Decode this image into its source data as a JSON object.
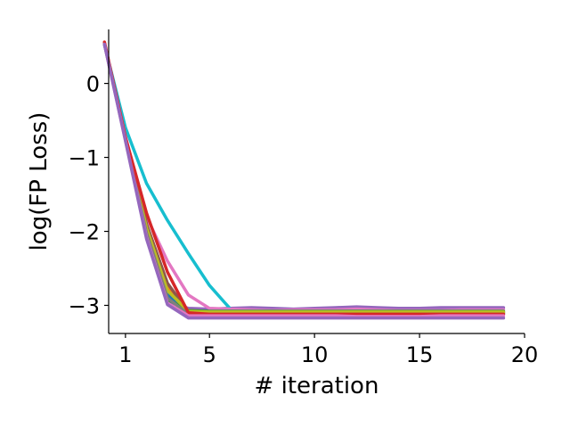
{
  "chart_data": {
    "type": "line",
    "title": "",
    "xlabel": "# iteration",
    "ylabel": "log(FP Loss)",
    "xlim": [
      0.2,
      20
    ],
    "ylim": [
      -3.38,
      0.73
    ],
    "x_ticks": [
      1,
      5,
      10,
      15,
      20
    ],
    "x_tick_labels": [
      "1",
      "5",
      "10",
      "15",
      "20"
    ],
    "y_ticks": [
      0,
      -1,
      -2,
      -3
    ],
    "y_tick_labels": [
      "0",
      "−1",
      "−2",
      "−3"
    ],
    "grid": false,
    "legend": "none",
    "series": [
      {
        "color": "#9467bd",
        "x": [
          0,
          1,
          2,
          3,
          4,
          5,
          6,
          7,
          8,
          9,
          10,
          11,
          12,
          13,
          14,
          15,
          16,
          17,
          18,
          19
        ],
        "y": [
          0.55,
          -0.75,
          -2.05,
          -2.95,
          -3.04,
          -3.05,
          -3.04,
          -3.03,
          -3.04,
          -3.05,
          -3.04,
          -3.03,
          -3.02,
          -3.03,
          -3.04,
          -3.04,
          -3.03,
          -3.03,
          -3.03,
          -3.03
        ]
      },
      {
        "color": "#17becf",
        "x": [
          0,
          1,
          2,
          3,
          4,
          5,
          6,
          7,
          8,
          9,
          10,
          11,
          12,
          13,
          14,
          15,
          16,
          17,
          18,
          19
        ],
        "y": [
          0.52,
          -0.6,
          -1.35,
          -1.85,
          -2.3,
          -2.73,
          -3.05,
          -3.07,
          -3.08,
          -3.08,
          -3.08,
          -3.08,
          -3.08,
          -3.08,
          -3.08,
          -3.08,
          -3.08,
          -3.08,
          -3.08,
          -3.08
        ]
      },
      {
        "color": "#e377c2",
        "x": [
          0,
          1,
          2,
          3,
          4,
          5,
          6,
          7,
          8,
          9,
          10,
          11,
          12,
          13,
          14,
          15,
          16,
          17,
          18,
          19
        ],
        "y": [
          0.53,
          -0.72,
          -1.8,
          -2.4,
          -2.86,
          -3.04,
          -3.05,
          -3.06,
          -3.07,
          -3.06,
          -3.06,
          -3.06,
          -3.05,
          -3.06,
          -3.07,
          -3.07,
          -3.07,
          -3.06,
          -3.06,
          -3.06
        ]
      },
      {
        "color": "#1f77b4",
        "x": [
          0,
          1,
          2,
          3,
          4,
          5,
          6,
          7,
          8,
          9,
          10,
          11,
          12,
          13,
          14,
          15,
          16,
          17,
          18,
          19
        ],
        "y": [
          0.54,
          -0.75,
          -2.0,
          -2.85,
          -3.1,
          -3.11,
          -3.11,
          -3.11,
          -3.11,
          -3.11,
          -3.11,
          -3.11,
          -3.11,
          -3.11,
          -3.11,
          -3.11,
          -3.11,
          -3.11,
          -3.11,
          -3.11
        ]
      },
      {
        "color": "#ff7f0e",
        "x": [
          0,
          1,
          2,
          3,
          4,
          5,
          6,
          7,
          8,
          9,
          10,
          11,
          12,
          13,
          14,
          15,
          16,
          17,
          18,
          19
        ],
        "y": [
          0.54,
          -0.74,
          -1.95,
          -2.75,
          -3.08,
          -3.1,
          -3.1,
          -3.1,
          -3.1,
          -3.1,
          -3.1,
          -3.1,
          -3.1,
          -3.1,
          -3.1,
          -3.1,
          -3.1,
          -3.1,
          -3.1,
          -3.1
        ]
      },
      {
        "color": "#2ca02c",
        "x": [
          0,
          1,
          2,
          3,
          4,
          5,
          6,
          7,
          8,
          9,
          10,
          11,
          12,
          13,
          14,
          15,
          16,
          17,
          18,
          19
        ],
        "y": [
          0.54,
          -0.76,
          -2.0,
          -2.92,
          -3.07,
          -3.08,
          -3.08,
          -3.08,
          -3.08,
          -3.08,
          -3.08,
          -3.08,
          -3.08,
          -3.08,
          -3.08,
          -3.08,
          -3.08,
          -3.08,
          -3.08,
          -3.08
        ]
      },
      {
        "color": "#8c564b",
        "x": [
          0,
          1,
          2,
          3,
          4,
          5,
          6,
          7,
          8,
          9,
          10,
          11,
          12,
          13,
          14,
          15,
          16,
          17,
          18,
          19
        ],
        "y": [
          0.54,
          -0.74,
          -1.9,
          -2.7,
          -3.09,
          -3.1,
          -3.1,
          -3.1,
          -3.1,
          -3.1,
          -3.1,
          -3.1,
          -3.1,
          -3.1,
          -3.1,
          -3.1,
          -3.1,
          -3.1,
          -3.1,
          -3.1
        ]
      },
      {
        "color": "#bcbd22",
        "x": [
          0,
          1,
          2,
          3,
          4,
          5,
          6,
          7,
          8,
          9,
          10,
          11,
          12,
          13,
          14,
          15,
          16,
          17,
          18,
          19
        ],
        "y": [
          0.54,
          -0.75,
          -1.95,
          -2.8,
          -3.08,
          -3.09,
          -3.09,
          -3.09,
          -3.09,
          -3.09,
          -3.09,
          -3.09,
          -3.09,
          -3.09,
          -3.09,
          -3.09,
          -3.09,
          -3.09,
          -3.09,
          -3.09
        ]
      },
      {
        "color": "#7f7f7f",
        "x": [
          0,
          1,
          2,
          3,
          4,
          5,
          6,
          7,
          8,
          9,
          10,
          11,
          12,
          13,
          14,
          15,
          16,
          17,
          18,
          19
        ],
        "y": [
          0.54,
          -0.76,
          -2.02,
          -2.9,
          -3.12,
          -3.12,
          -3.12,
          -3.12,
          -3.12,
          -3.12,
          -3.12,
          -3.12,
          -3.12,
          -3.12,
          -3.12,
          -3.12,
          -3.12,
          -3.12,
          -3.12,
          -3.12
        ]
      },
      {
        "color": "#d62728",
        "x": [
          0,
          1,
          2,
          3,
          4,
          5,
          6,
          7,
          8,
          9,
          10,
          11,
          12,
          13,
          14,
          15,
          16,
          17,
          18,
          19
        ],
        "y": [
          0.56,
          -0.73,
          -1.75,
          -2.55,
          -3.1,
          -3.12,
          -3.12,
          -3.12,
          -3.12,
          -3.12,
          -3.12,
          -3.12,
          -3.12,
          -3.12,
          -3.12,
          -3.12,
          -3.12,
          -3.12,
          -3.12,
          -3.12
        ]
      },
      {
        "color": "#e377c2",
        "x": [
          0,
          1,
          2,
          3,
          4,
          5,
          6,
          7,
          8,
          9,
          10,
          11,
          12,
          13,
          14,
          15,
          16,
          17,
          18,
          19
        ],
        "y": [
          0.53,
          -0.77,
          -2.08,
          -2.97,
          -3.14,
          -3.14,
          -3.14,
          -3.14,
          -3.14,
          -3.14,
          -3.14,
          -3.14,
          -3.15,
          -3.15,
          -3.15,
          -3.15,
          -3.14,
          -3.14,
          -3.14,
          -3.14
        ]
      },
      {
        "color": "#9467bd",
        "x": [
          0,
          1,
          2,
          3,
          4,
          5,
          6,
          7,
          8,
          9,
          10,
          11,
          12,
          13,
          14,
          15,
          16,
          17,
          18,
          19
        ],
        "y": [
          0.53,
          -0.78,
          -2.1,
          -2.99,
          -3.17,
          -3.17,
          -3.17,
          -3.17,
          -3.17,
          -3.17,
          -3.17,
          -3.17,
          -3.17,
          -3.17,
          -3.17,
          -3.17,
          -3.17,
          -3.17,
          -3.17,
          -3.17
        ]
      }
    ]
  }
}
